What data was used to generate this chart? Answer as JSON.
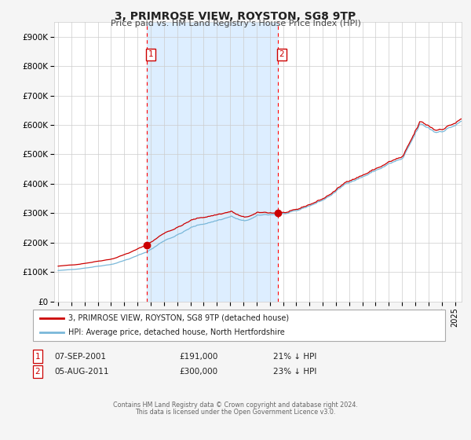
{
  "title": "3, PRIMROSE VIEW, ROYSTON, SG8 9TP",
  "subtitle": "Price paid vs. HM Land Registry's House Price Index (HPI)",
  "xlim": [
    1994.7,
    2025.5
  ],
  "ylim": [
    0,
    950000
  ],
  "yticks": [
    0,
    100000,
    200000,
    300000,
    400000,
    500000,
    600000,
    700000,
    800000,
    900000
  ],
  "ytick_labels": [
    "£0",
    "£100K",
    "£200K",
    "£300K",
    "£400K",
    "£500K",
    "£600K",
    "£700K",
    "£800K",
    "£900K"
  ],
  "hpi_color": "#7ab8d9",
  "price_color": "#cc0000",
  "shade_color": "#ddeeff",
  "sale1_x": 2001.69,
  "sale1_y": 191000,
  "sale1_label": "1",
  "sale2_x": 2011.59,
  "sale2_y": 300000,
  "sale2_label": "2",
  "legend_line1": "3, PRIMROSE VIEW, ROYSTON, SG8 9TP (detached house)",
  "legend_line2": "HPI: Average price, detached house, North Hertfordshire",
  "table_row1": [
    "1",
    "07-SEP-2001",
    "£191,000",
    "21% ↓ HPI"
  ],
  "table_row2": [
    "2",
    "05-AUG-2011",
    "£300,000",
    "23% ↓ HPI"
  ],
  "footnote1": "Contains HM Land Registry data © Crown copyright and database right 2024.",
  "footnote2": "This data is licensed under the Open Government Licence v3.0.",
  "bg_color": "#f5f5f5",
  "plot_bg_color": "#ffffff",
  "grid_color": "#cccccc"
}
